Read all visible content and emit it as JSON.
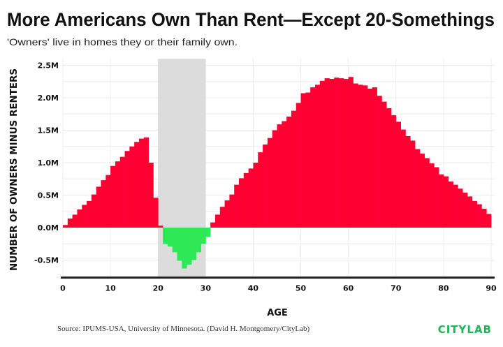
{
  "chart_data": {
    "type": "bar",
    "title": "More Americans Own Than Rent—Except 20-Somethings",
    "subtitle": "'Owners' live in homes they or their family own.",
    "xlabel": "AGE",
    "ylabel": "NUMBER OF OWNERS MINUS RENTERS",
    "xlim": [
      0,
      90
    ],
    "ylim": [
      -0.77,
      2.6
    ],
    "x_ticks": [
      "0",
      "10",
      "20",
      "30",
      "40",
      "50",
      "60",
      "70",
      "80",
      "90"
    ],
    "x_tick_values": [
      0,
      10,
      20,
      30,
      40,
      50,
      60,
      70,
      80,
      90
    ],
    "y_ticks": [
      "-0.5M",
      "0.0M",
      "0.5M",
      "1.0M",
      "1.5M",
      "2.0M",
      "2.5M"
    ],
    "y_tick_values": [
      -0.5,
      0,
      0.5,
      1.0,
      1.5,
      2.0,
      2.5
    ],
    "y_unit": "millions",
    "grid": true,
    "highlight_band": [
      20,
      30
    ],
    "colors": {
      "positive": "#ff0033",
      "negative": "#2ee855",
      "band": "#dcdcdc"
    },
    "x": [
      0,
      1,
      2,
      3,
      4,
      5,
      6,
      7,
      8,
      9,
      10,
      11,
      12,
      13,
      14,
      15,
      16,
      17,
      18,
      19,
      20,
      21,
      22,
      23,
      24,
      25,
      26,
      27,
      28,
      29,
      30,
      31,
      32,
      33,
      34,
      35,
      36,
      37,
      38,
      39,
      40,
      41,
      42,
      43,
      44,
      45,
      46,
      47,
      48,
      49,
      50,
      51,
      52,
      53,
      54,
      55,
      56,
      57,
      58,
      59,
      60,
      61,
      62,
      63,
      64,
      65,
      66,
      67,
      68,
      69,
      70,
      71,
      72,
      73,
      74,
      75,
      76,
      77,
      78,
      79,
      80,
      81,
      82,
      83,
      84,
      85,
      86,
      87,
      88,
      89
    ],
    "values": [
      0.04,
      0.14,
      0.2,
      0.28,
      0.35,
      0.41,
      0.51,
      0.63,
      0.73,
      0.81,
      0.95,
      1.02,
      1.09,
      1.18,
      1.25,
      1.32,
      1.37,
      1.39,
      1.0,
      0.46,
      0.03,
      -0.25,
      -0.29,
      -0.38,
      -0.51,
      -0.63,
      -0.57,
      -0.5,
      -0.38,
      -0.25,
      -0.14,
      0.08,
      0.2,
      0.32,
      0.42,
      0.51,
      0.66,
      0.76,
      0.84,
      0.91,
      1.0,
      1.16,
      1.28,
      1.38,
      1.5,
      1.59,
      1.64,
      1.71,
      1.8,
      1.92,
      2.07,
      2.08,
      2.16,
      2.2,
      2.26,
      2.3,
      2.29,
      2.31,
      2.3,
      2.29,
      2.32,
      2.22,
      2.2,
      2.19,
      2.14,
      2.16,
      2.03,
      1.94,
      1.84,
      1.73,
      1.63,
      1.51,
      1.41,
      1.34,
      1.21,
      1.14,
      1.07,
      0.99,
      0.93,
      0.82,
      0.79,
      0.71,
      0.66,
      0.6,
      0.54,
      0.48,
      0.41,
      0.36,
      0.29,
      0.21
    ]
  },
  "footer": {
    "source": "Source: IPUMS-USA, University of Minnesota. (David H. Montgomery/CityLab)",
    "logo": "CITYLAB",
    "logo_color": "#1fb35a"
  }
}
